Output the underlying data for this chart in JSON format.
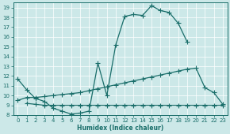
{
  "xlabel": "Humidex (Indice chaleur)",
  "bg_color": "#cce8e8",
  "line_color": "#1a6e6a",
  "xlim": [
    -0.5,
    23.5
  ],
  "ylim": [
    8,
    19.5
  ],
  "yticks": [
    8,
    9,
    10,
    11,
    12,
    13,
    14,
    15,
    16,
    17,
    18,
    19
  ],
  "xticks": [
    0,
    1,
    2,
    3,
    4,
    5,
    6,
    7,
    8,
    9,
    10,
    11,
    12,
    13,
    14,
    15,
    16,
    17,
    18,
    19,
    20,
    21,
    22,
    23
  ],
  "line1_x": [
    0,
    1,
    2,
    3,
    4,
    5,
    6,
    7,
    8,
    9,
    10,
    11,
    12,
    13,
    14,
    15,
    16,
    17,
    18,
    19
  ],
  "line1_y": [
    11.7,
    10.6,
    9.7,
    9.4,
    8.7,
    8.4,
    8.1,
    8.2,
    8.4,
    13.3,
    10.0,
    15.2,
    18.1,
    18.3,
    18.2,
    19.2,
    18.7,
    18.5,
    17.4,
    15.5
  ],
  "line2_x": [
    0,
    1,
    2,
    3,
    4,
    5,
    6,
    7,
    8,
    9,
    10,
    11,
    12,
    13,
    14,
    15,
    16,
    17,
    18,
    19,
    20,
    21,
    22,
    23
  ],
  "line2_y": [
    9.5,
    9.8,
    9.8,
    9.9,
    10.0,
    10.1,
    10.2,
    10.3,
    10.5,
    10.7,
    10.9,
    11.1,
    11.3,
    11.5,
    11.7,
    11.9,
    12.1,
    12.3,
    12.5,
    12.7,
    12.8,
    10.8,
    10.3,
    9.1
  ],
  "line3_x": [
    1,
    2,
    3,
    4,
    5,
    6,
    7,
    8,
    9,
    10,
    11,
    12,
    13,
    14,
    15,
    16,
    17,
    18,
    19,
    20,
    21,
    22,
    23
  ],
  "line3_y": [
    9.2,
    9.1,
    9.0,
    9.0,
    9.0,
    9.0,
    9.0,
    9.0,
    9.0,
    9.0,
    9.0,
    9.0,
    9.0,
    9.0,
    9.0,
    9.0,
    9.0,
    9.0,
    9.0,
    9.0,
    9.0,
    9.0,
    9.0
  ]
}
